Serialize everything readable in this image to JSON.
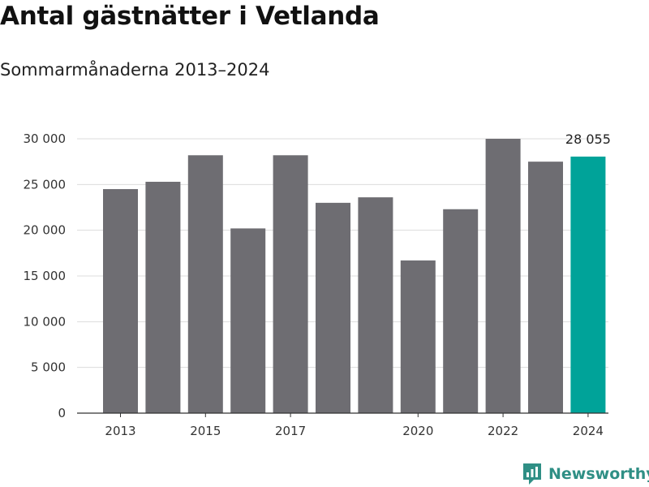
{
  "title": "Antal gästnätter i Vetlanda",
  "subtitle": "Sommarmånaderna 2013–2024",
  "brand": {
    "name": "Newsworthy",
    "color": "#2f8f85",
    "icon": "newsworthy-logo-icon"
  },
  "colors": {
    "bar": "#6e6d72",
    "highlight": "#00a399",
    "grid": "#dcdcdc",
    "axis": "#333333"
  },
  "chart_data": {
    "type": "bar",
    "categories": [
      "2013",
      "2014",
      "2015",
      "2016",
      "2017",
      "2018",
      "2019",
      "2020",
      "2021",
      "2022",
      "2023",
      "2024"
    ],
    "values": [
      24500,
      25300,
      28200,
      20200,
      28200,
      23000,
      23600,
      16700,
      22300,
      30000,
      27500,
      28055
    ],
    "x_tick_labels": [
      "2013",
      "",
      "2015",
      "",
      "2017",
      "",
      "",
      "2020",
      "",
      "2022",
      "",
      "2024"
    ],
    "y_ticks": [
      0,
      5000,
      10000,
      15000,
      20000,
      25000,
      30000
    ],
    "y_tick_labels": [
      "0",
      "5 000",
      "10 000",
      "15 000",
      "20 000",
      "25 000",
      "30 000"
    ],
    "ylim": [
      0,
      30000
    ],
    "highlight_index": 11,
    "data_labels": {
      "11": "28 055"
    },
    "xlabel": "",
    "ylabel": "",
    "grid": "horizontal",
    "legend": "none"
  }
}
